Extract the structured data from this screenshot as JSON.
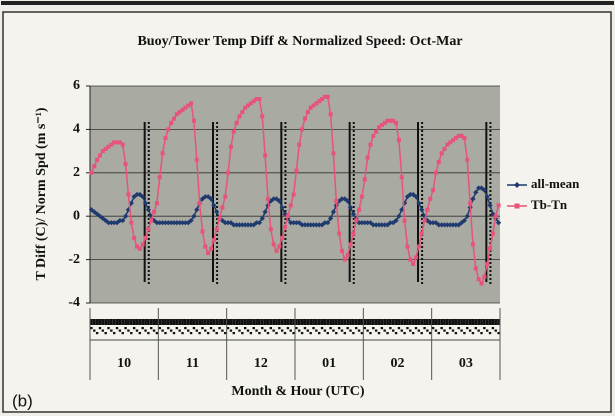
{
  "chart_data": {
    "type": "line",
    "title": "Buoy/Tower Temp Diff & Normalized Speed: Oct-Mar",
    "ylabel": "T Diff (C)/ Norm Spd (m s⁻¹)",
    "xlabel": "Month & Hour (UTC)",
    "panel_label": "(b)",
    "groups": [
      "10",
      "11",
      "12",
      "01",
      "02",
      "03"
    ],
    "ylim": [
      -4,
      6
    ],
    "yticks": [
      -4,
      -2,
      0,
      2,
      4,
      6
    ],
    "grid": true,
    "legend": "right",
    "series": [
      {
        "name": "all-mean",
        "color": "#1f3a6e",
        "marker": "diamond",
        "values": [
          0.3,
          0.2,
          0.1,
          0.0,
          -0.1,
          -0.2,
          -0.3,
          -0.3,
          -0.3,
          -0.3,
          -0.2,
          -0.2,
          0.0,
          0.3,
          0.6,
          0.9,
          1.0,
          1.0,
          0.9,
          0.6,
          0.3,
          0.0,
          -0.2,
          -0.3,
          -0.3,
          -0.3,
          -0.3,
          -0.3,
          -0.3,
          -0.3,
          -0.3,
          -0.3,
          -0.3,
          -0.3,
          -0.3,
          -0.2,
          0.0,
          0.3,
          0.6,
          0.8,
          0.9,
          0.9,
          0.8,
          0.5,
          0.2,
          -0.1,
          -0.2,
          -0.3,
          -0.3,
          -0.3,
          -0.4,
          -0.4,
          -0.4,
          -0.4,
          -0.4,
          -0.4,
          -0.4,
          -0.4,
          -0.3,
          -0.3,
          -0.1,
          0.2,
          0.5,
          0.7,
          0.8,
          0.8,
          0.7,
          0.4,
          0.1,
          -0.1,
          -0.3,
          -0.3,
          -0.3,
          -0.3,
          -0.4,
          -0.4,
          -0.4,
          -0.4,
          -0.4,
          -0.4,
          -0.4,
          -0.4,
          -0.3,
          -0.3,
          -0.1,
          0.2,
          0.5,
          0.7,
          0.8,
          0.8,
          0.7,
          0.4,
          0.1,
          -0.1,
          -0.3,
          -0.3,
          -0.3,
          -0.3,
          -0.3,
          -0.4,
          -0.4,
          -0.4,
          -0.4,
          -0.4,
          -0.4,
          -0.3,
          -0.3,
          -0.2,
          0.0,
          0.3,
          0.6,
          0.9,
          1.0,
          1.0,
          0.9,
          0.6,
          0.3,
          0.0,
          -0.2,
          -0.3,
          -0.3,
          -0.3,
          -0.4,
          -0.4,
          -0.4,
          -0.4,
          -0.4,
          -0.4,
          -0.4,
          -0.4,
          -0.3,
          -0.2,
          0.0,
          0.4,
          0.8,
          1.1,
          1.3,
          1.3,
          1.2,
          0.9,
          0.5,
          0.1,
          -0.1,
          -0.3
        ]
      },
      {
        "name": "Tb-Tn",
        "color": "#e8537a",
        "marker": "square",
        "values": [
          2.0,
          2.3,
          2.6,
          2.8,
          3.0,
          3.1,
          3.2,
          3.3,
          3.4,
          3.4,
          3.4,
          3.3,
          2.4,
          1.0,
          -0.3,
          -1.0,
          -1.4,
          -1.5,
          -1.3,
          -1.0,
          -0.6,
          -0.2,
          0.2,
          0.6,
          1.8,
          2.9,
          3.6,
          4.0,
          4.3,
          4.5,
          4.7,
          4.8,
          4.9,
          5.0,
          5.1,
          5.2,
          4.4,
          2.6,
          0.6,
          -0.7,
          -1.4,
          -1.7,
          -1.5,
          -1.1,
          -0.6,
          -0.1,
          0.4,
          0.9,
          2.0,
          3.2,
          3.9,
          4.3,
          4.6,
          4.8,
          5.0,
          5.1,
          5.2,
          5.3,
          5.4,
          5.4,
          4.6,
          2.8,
          0.8,
          -0.6,
          -1.3,
          -1.6,
          -1.4,
          -1.0,
          -0.5,
          0.0,
          0.5,
          1.0,
          2.1,
          3.3,
          4.0,
          4.5,
          4.8,
          5.0,
          5.1,
          5.2,
          5.3,
          5.4,
          5.5,
          5.5,
          4.7,
          2.9,
          0.7,
          -0.8,
          -1.6,
          -2.0,
          -1.8,
          -1.3,
          -0.8,
          -0.2,
          0.3,
          0.9,
          1.7,
          2.7,
          3.3,
          3.7,
          3.9,
          4.1,
          4.2,
          4.3,
          4.4,
          4.4,
          4.4,
          4.3,
          3.5,
          1.8,
          -0.2,
          -1.4,
          -2.0,
          -2.2,
          -1.9,
          -1.4,
          -0.8,
          -0.2,
          0.3,
          0.8,
          1.2,
          2.0,
          2.5,
          2.9,
          3.1,
          3.3,
          3.4,
          3.5,
          3.6,
          3.7,
          3.7,
          3.6,
          2.6,
          0.6,
          -1.3,
          -2.4,
          -2.9,
          -3.1,
          -2.8,
          -2.2,
          -1.5,
          -0.8,
          0.0,
          0.5
        ]
      }
    ]
  }
}
